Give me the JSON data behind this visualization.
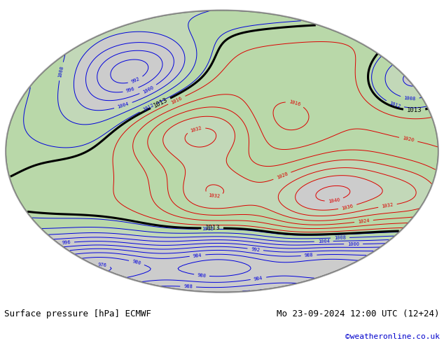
{
  "title_left": "Surface pressure [hPa] ECMWF",
  "title_right": "Mo 23-09-2024 12:00 UTC (12+24)",
  "copyright": "©weatheronline.co.uk",
  "bg_color": "#ffffff",
  "map_bg": "#cccccc",
  "land_green": "#b8e8a0",
  "text_color_black": "#000000",
  "text_color_blue": "#0000dd",
  "text_color_red": "#dd0000",
  "copyright_color": "#0000cc",
  "figsize": [
    6.34,
    4.9
  ],
  "dpi": 100
}
